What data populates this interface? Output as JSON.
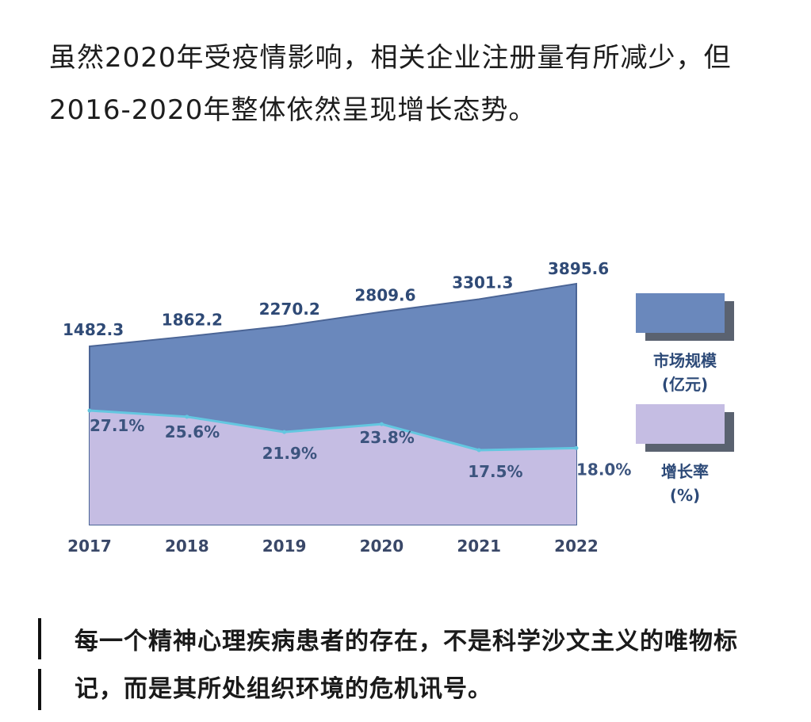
{
  "intro_text": "虽然2020年受疫情影响，相关企业注册量有所减少，但2016-2020年整体依然呈现增长态势。",
  "chart_data": {
    "type": "area",
    "categories": [
      "2017",
      "2018",
      "2019",
      "2020",
      "2021",
      "2022"
    ],
    "series": [
      {
        "name": "市场规模（亿元）",
        "values": [
          1482.3,
          1862.2,
          2270.2,
          2809.6,
          3301.3,
          3895.6
        ],
        "labels": [
          "1482.3",
          "1862.2",
          "2270.2",
          "2809.6",
          "3301.3",
          "3895.6"
        ],
        "color": "#6a88bc"
      },
      {
        "name": "增长率（%）",
        "values": [
          27.1,
          25.6,
          21.9,
          23.8,
          17.5,
          18.0
        ],
        "labels": [
          "27.1%",
          "25.6%",
          "21.9%",
          "23.8%",
          "17.5%",
          "18.0%"
        ],
        "color": "#c5bde3"
      }
    ],
    "legend": {
      "market_line1": "市场规模",
      "market_line2": "(亿元)",
      "growth_line1": "增长率",
      "growth_line2": "(%)"
    },
    "legend_position": "right",
    "grid": false
  },
  "quote_text": "每一个精神心理疾病患者的存在，不是科学沙文主义的唯物标记，而是其所处组织环境的危机讯号。"
}
